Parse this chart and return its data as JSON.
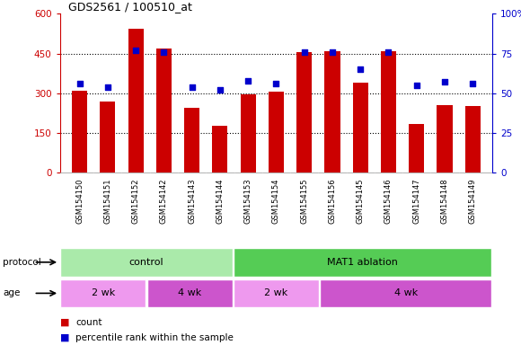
{
  "title": "GDS2561 / 100510_at",
  "samples": [
    "GSM154150",
    "GSM154151",
    "GSM154152",
    "GSM154142",
    "GSM154143",
    "GSM154144",
    "GSM154153",
    "GSM154154",
    "GSM154155",
    "GSM154156",
    "GSM154145",
    "GSM154146",
    "GSM154147",
    "GSM154148",
    "GSM154149"
  ],
  "counts": [
    310,
    270,
    545,
    470,
    245,
    175,
    295,
    305,
    455,
    460,
    340,
    460,
    185,
    255,
    250
  ],
  "percentiles": [
    56,
    54,
    77,
    76,
    54,
    52,
    58,
    56,
    76,
    76,
    65,
    76,
    55,
    57,
    56
  ],
  "left_ylim": [
    0,
    600
  ],
  "left_yticks": [
    0,
    150,
    300,
    450,
    600
  ],
  "right_ylim": [
    0,
    100
  ],
  "right_yticks": [
    0,
    25,
    50,
    75,
    100
  ],
  "bar_color": "#cc0000",
  "dot_color": "#0000cc",
  "grid_color": "#000000",
  "left_tick_color": "#cc0000",
  "right_tick_color": "#0000cc",
  "protocol_groups": [
    {
      "label": "control",
      "start": 0,
      "end": 6,
      "color": "#aaeaaa"
    },
    {
      "label": "MAT1 ablation",
      "start": 6,
      "end": 15,
      "color": "#55cc55"
    }
  ],
  "age_groups": [
    {
      "label": "2 wk",
      "start": 0,
      "end": 3,
      "color": "#ee99ee"
    },
    {
      "label": "4 wk",
      "start": 3,
      "end": 6,
      "color": "#cc55cc"
    },
    {
      "label": "2 wk",
      "start": 6,
      "end": 9,
      "color": "#ee99ee"
    },
    {
      "label": "4 wk",
      "start": 9,
      "end": 15,
      "color": "#cc55cc"
    }
  ],
  "protocol_label": "protocol",
  "age_label": "age",
  "legend_count_label": "count",
  "legend_percentile_label": "percentile rank within the sample",
  "bg_color": "#ffffff",
  "plot_bg_color": "#ffffff",
  "xticklabel_bg": "#c8c8c8",
  "grid_yticks": [
    150,
    300,
    450
  ],
  "right_tick_labels": [
    "0",
    "25",
    "50",
    "75",
    "100%"
  ]
}
